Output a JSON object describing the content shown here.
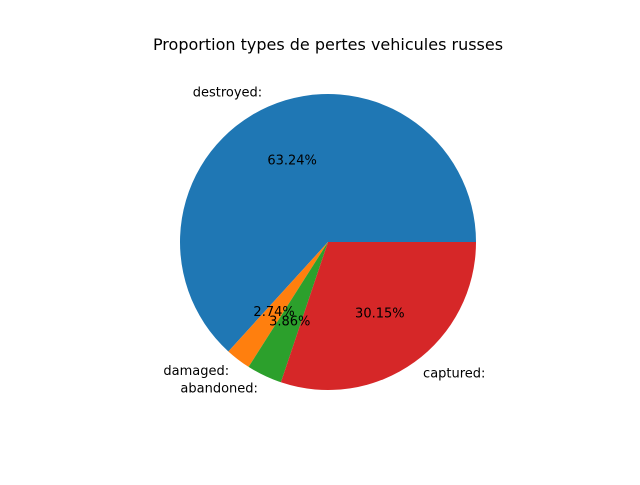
{
  "chart_data": {
    "type": "pie",
    "title": "Proportion types de pertes vehicules russes",
    "slices": [
      {
        "label": "destroyed:",
        "value": 63.24,
        "pct_label": "63.24%",
        "color": "#1f77b4"
      },
      {
        "label": "damaged:",
        "value": 2.74,
        "pct_label": "2.74%",
        "color": "#ff7f0e"
      },
      {
        "label": "abandoned:",
        "value": 3.86,
        "pct_label": "3.86%",
        "color": "#2ca02c"
      },
      {
        "label": "captured:",
        "value": 30.15,
        "pct_label": "30.15%",
        "color": "#d62728"
      }
    ],
    "legend": "none",
    "grid": false
  }
}
